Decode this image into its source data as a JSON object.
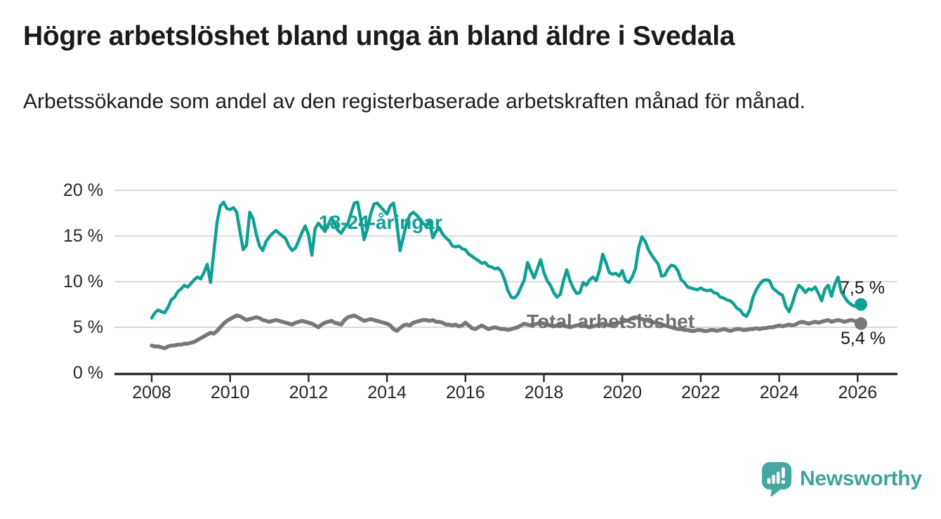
{
  "header": {
    "title": "Högre arbetslöshet bland unga än bland äldre i Svedala",
    "subtitle": "Arbetssökande som andel av den registerbaserade arbetskraften månad för månad."
  },
  "chart_data": {
    "type": "line",
    "unit": "percent",
    "frequency": "monthly",
    "start": "2008-01",
    "end": "2026-02",
    "grid": true,
    "ylim": [
      0,
      21.5
    ],
    "x_ticks": [
      2008,
      2010,
      2012,
      2014,
      2016,
      2018,
      2020,
      2022,
      2024,
      2026
    ],
    "y_ticks": [
      {
        "value": 0,
        "label": "0 %"
      },
      {
        "value": 5,
        "label": "5 %"
      },
      {
        "value": 10,
        "label": "10 %"
      },
      {
        "value": 15,
        "label": "15 %"
      },
      {
        "value": 20,
        "label": "20 %"
      }
    ],
    "axis_color": "#2e2e2e",
    "grid_color": "#dadada",
    "series": [
      {
        "name": "18-24-åringar",
        "color": "#0fa094",
        "end_label": "7,5 %",
        "end_value": 7.5,
        "values": [
          6.0,
          6.6,
          6.9,
          6.7,
          6.6,
          7.2,
          8.0,
          8.3,
          8.9,
          9.2,
          9.6,
          9.4,
          9.8,
          10.2,
          10.5,
          10.3,
          11.0,
          11.9,
          9.9,
          13.2,
          16.5,
          18.3,
          18.7,
          18.0,
          17.9,
          18.1,
          17.6,
          15.5,
          13.5,
          14.0,
          17.6,
          16.9,
          15.2,
          13.9,
          13.4,
          14.4,
          14.9,
          15.3,
          15.6,
          15.3,
          15.0,
          14.7,
          13.9,
          13.4,
          13.7,
          14.5,
          15.4,
          16.1,
          15.1,
          12.9,
          15.8,
          16.4,
          16.0,
          15.5,
          16.2,
          17.0,
          16.4,
          15.6,
          15.3,
          15.9,
          16.3,
          17.5,
          18.6,
          18.7,
          16.8,
          14.6,
          15.8,
          17.4,
          18.5,
          18.6,
          18.2,
          17.8,
          17.4,
          18.3,
          18.6,
          16.4,
          13.4,
          14.9,
          16.4,
          17.3,
          17.6,
          17.3,
          16.9,
          16.4,
          16.1,
          16.6,
          14.8,
          15.5,
          15.9,
          15.2,
          14.8,
          14.5,
          13.9,
          13.8,
          13.9,
          13.6,
          13.5,
          13.0,
          12.8,
          12.5,
          12.3,
          12.0,
          12.1,
          11.7,
          11.6,
          11.4,
          11.5,
          11.1,
          10.2,
          9.0,
          8.3,
          8.2,
          8.6,
          9.4,
          10.2,
          12.1,
          11.2,
          10.4,
          11.4,
          12.4,
          11.0,
          10.1,
          9.6,
          8.8,
          8.3,
          8.6,
          10.1,
          11.3,
          10.1,
          9.3,
          8.7,
          8.8,
          9.9,
          9.6,
          10.2,
          10.5,
          10.1,
          11.2,
          13.0,
          12.1,
          11.0,
          10.8,
          10.9,
          10.6,
          11.2,
          10.1,
          9.9,
          10.5,
          11.4,
          13.7,
          14.9,
          14.4,
          13.5,
          12.9,
          12.4,
          11.9,
          10.6,
          10.7,
          11.4,
          11.8,
          11.7,
          11.2,
          10.2,
          9.9,
          9.4,
          9.3,
          9.2,
          9.1,
          9.3,
          9.1,
          9.0,
          9.1,
          8.8,
          8.7,
          8.3,
          8.2,
          8.0,
          7.9,
          7.6,
          7.1,
          6.9,
          6.4,
          6.2,
          6.9,
          8.3,
          9.1,
          9.7,
          10.1,
          10.2,
          10.1,
          9.3,
          9.0,
          8.7,
          8.5,
          7.3,
          6.7,
          7.6,
          8.8,
          9.6,
          9.3,
          8.8,
          9.2,
          9.1,
          9.4,
          8.7,
          7.9,
          9.2,
          9.6,
          8.4,
          9.7,
          10.5,
          8.9,
          8.3,
          7.8,
          7.5,
          7.3,
          7.4,
          7.5
        ]
      },
      {
        "name": "Total arbetslöshet",
        "color": "#787878",
        "end_label": "5,4 %",
        "end_value": 5.4,
        "values": [
          3.0,
          2.9,
          2.9,
          2.8,
          2.7,
          2.9,
          3.0,
          3.0,
          3.1,
          3.1,
          3.2,
          3.2,
          3.3,
          3.4,
          3.6,
          3.8,
          4.0,
          4.2,
          4.4,
          4.3,
          4.6,
          5.0,
          5.4,
          5.7,
          5.9,
          6.1,
          6.3,
          6.2,
          6.0,
          5.8,
          5.9,
          6.0,
          6.1,
          6.0,
          5.8,
          5.7,
          5.6,
          5.7,
          5.8,
          5.7,
          5.6,
          5.5,
          5.4,
          5.3,
          5.5,
          5.6,
          5.7,
          5.6,
          5.5,
          5.4,
          5.2,
          5.0,
          5.3,
          5.5,
          5.6,
          5.7,
          5.5,
          5.4,
          5.3,
          5.8,
          6.1,
          6.2,
          6.3,
          6.1,
          5.9,
          5.7,
          5.8,
          5.9,
          5.8,
          5.7,
          5.6,
          5.5,
          5.4,
          5.2,
          4.8,
          4.6,
          4.9,
          5.2,
          5.3,
          5.2,
          5.5,
          5.6,
          5.7,
          5.8,
          5.8,
          5.7,
          5.8,
          5.6,
          5.6,
          5.5,
          5.3,
          5.3,
          5.2,
          5.3,
          5.1,
          5.2,
          5.5,
          5.2,
          4.9,
          4.8,
          5.0,
          5.2,
          5.0,
          4.8,
          4.9,
          5.0,
          4.9,
          4.8,
          4.8,
          4.7,
          4.8,
          4.9,
          5.0,
          5.2,
          5.4,
          5.3,
          5.2,
          5.3,
          5.4,
          5.5,
          5.4,
          5.3,
          5.2,
          5.1,
          5.2,
          5.3,
          5.2,
          5.1,
          5.0,
          5.1,
          5.2,
          5.3,
          5.2,
          5.1,
          5.0,
          5.1,
          5.2,
          5.3,
          5.4,
          5.3,
          5.2,
          5.3,
          5.4,
          5.5,
          5.6,
          5.7,
          5.8,
          6.0,
          6.1,
          6.0,
          5.9,
          5.8,
          5.7,
          5.6,
          5.5,
          5.4,
          5.3,
          5.2,
          5.1,
          5.0,
          4.9,
          4.8,
          4.8,
          4.7,
          4.7,
          4.6,
          4.6,
          4.7,
          4.7,
          4.6,
          4.6,
          4.7,
          4.7,
          4.6,
          4.7,
          4.8,
          4.7,
          4.6,
          4.7,
          4.8,
          4.8,
          4.7,
          4.7,
          4.8,
          4.8,
          4.9,
          4.8,
          4.9,
          4.9,
          5.0,
          5.0,
          5.1,
          5.2,
          5.1,
          5.2,
          5.3,
          5.2,
          5.3,
          5.5,
          5.6,
          5.5,
          5.4,
          5.5,
          5.6,
          5.5,
          5.6,
          5.7,
          5.8,
          5.6,
          5.7,
          5.8,
          5.7,
          5.6,
          5.7,
          5.8,
          5.7,
          5.5,
          5.4
        ]
      }
    ]
  },
  "footer": {
    "brand": "Newsworthy",
    "brand_color": "#3fa39c"
  }
}
